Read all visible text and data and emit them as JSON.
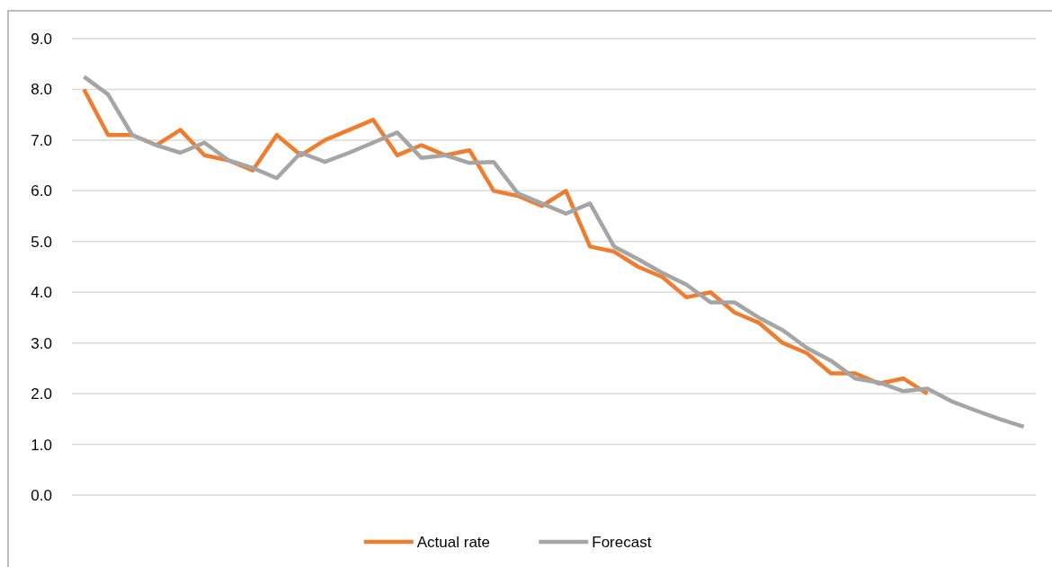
{
  "chart_data": {
    "type": "line",
    "categories": [
      null,
      null,
      null,
      null,
      null,
      null,
      null,
      null,
      null,
      null,
      null,
      null,
      null,
      null,
      null,
      null,
      null,
      null,
      null,
      null,
      null,
      null,
      null,
      null,
      null,
      null,
      null,
      null,
      null,
      null,
      null,
      null,
      null,
      null,
      null,
      null,
      null,
      null,
      null,
      null
    ],
    "series": [
      {
        "name": "Actual rate",
        "color": "#ed7d31",
        "values": [
          8.0,
          7.1,
          7.1,
          6.9,
          7.2,
          6.7,
          6.6,
          6.4,
          7.1,
          6.7,
          7.0,
          7.2,
          7.4,
          6.7,
          6.9,
          6.7,
          6.8,
          6.0,
          5.9,
          5.7,
          6.0,
          4.9,
          4.8,
          4.5,
          4.3,
          3.9,
          4.0,
          3.6,
          3.4,
          3.0,
          2.8,
          2.4,
          2.4,
          2.2,
          2.3,
          2.0,
          null,
          null,
          null,
          null
        ]
      },
      {
        "name": "Forecast",
        "color": "#a5a5a5",
        "values": [
          8.25,
          7.9,
          7.1,
          6.9,
          6.75,
          6.95,
          6.6,
          6.45,
          6.25,
          6.75,
          6.57,
          6.75,
          6.95,
          7.15,
          6.65,
          6.7,
          6.55,
          6.57,
          5.95,
          5.75,
          5.55,
          5.75,
          4.9,
          4.65,
          4.38,
          4.15,
          3.8,
          3.8,
          3.5,
          3.25,
          2.9,
          2.65,
          2.3,
          2.22,
          2.05,
          2.1,
          1.85,
          1.67,
          1.5,
          1.35
        ]
      }
    ],
    "ylim": [
      0,
      9
    ],
    "yticks": [
      {
        "value": 0,
        "label": "0.0"
      },
      {
        "value": 1,
        "label": "1.0"
      },
      {
        "value": 2,
        "label": "2.0"
      },
      {
        "value": 3,
        "label": "3.0"
      },
      {
        "value": 4,
        "label": "4.0"
      },
      {
        "value": 5,
        "label": "5.0"
      },
      {
        "value": 6,
        "label": "6.0"
      },
      {
        "value": 7,
        "label": "7.0"
      },
      {
        "value": 8,
        "label": "8.0"
      },
      {
        "value": 9,
        "label": "9.0"
      }
    ],
    "grid": "y",
    "legend": "bottom",
    "marker": "none",
    "line_style": "solid"
  }
}
